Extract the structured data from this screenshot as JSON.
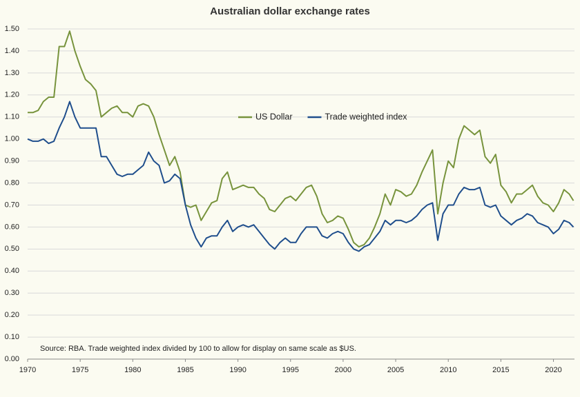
{
  "chart_data": {
    "type": "line",
    "title": "Australian dollar exchange rates",
    "annotation": "Source:  RBA.  Trade weighted index divided by 100 to allow for display on same scale as $US.",
    "x": [
      1970,
      1970.5,
      1971,
      1971.5,
      1972,
      1972.5,
      1973,
      1973.5,
      1974,
      1974.5,
      1975,
      1975.5,
      1976,
      1976.5,
      1977,
      1977.5,
      1978,
      1978.5,
      1979,
      1979.5,
      1980,
      1980.5,
      1981,
      1981.5,
      1982,
      1982.5,
      1983,
      1983.5,
      1984,
      1984.5,
      1985,
      1985.5,
      1986,
      1986.5,
      1987,
      1987.5,
      1988,
      1988.5,
      1989,
      1989.5,
      1990,
      1990.5,
      1991,
      1991.5,
      1992,
      1992.5,
      1993,
      1993.5,
      1994,
      1994.5,
      1995,
      1995.5,
      1996,
      1996.5,
      1997,
      1997.5,
      1998,
      1998.5,
      1999,
      1999.5,
      2000,
      2000.5,
      2001,
      2001.5,
      2002,
      2002.5,
      2003,
      2003.5,
      2004,
      2004.5,
      2005,
      2005.5,
      2006,
      2006.5,
      2007,
      2007.5,
      2008,
      2008.5,
      2009,
      2009.5,
      2010,
      2010.5,
      2011,
      2011.5,
      2012,
      2012.5,
      2013,
      2013.5,
      2014,
      2014.5,
      2015,
      2015.5,
      2016,
      2016.5,
      2017,
      2017.5,
      2018,
      2018.5,
      2019,
      2019.5,
      2020,
      2020.5,
      2021,
      2021.5,
      2021.9
    ],
    "series": [
      {
        "name": "US Dollar",
        "color": "#77933c",
        "values": [
          1.12,
          1.12,
          1.13,
          1.17,
          1.19,
          1.19,
          1.42,
          1.42,
          1.49,
          1.4,
          1.33,
          1.27,
          1.25,
          1.22,
          1.1,
          1.12,
          1.14,
          1.15,
          1.12,
          1.12,
          1.1,
          1.15,
          1.16,
          1.15,
          1.1,
          1.02,
          0.95,
          0.88,
          0.92,
          0.85,
          0.7,
          0.69,
          0.7,
          0.63,
          0.67,
          0.71,
          0.72,
          0.82,
          0.85,
          0.77,
          0.78,
          0.79,
          0.78,
          0.78,
          0.75,
          0.73,
          0.68,
          0.67,
          0.7,
          0.73,
          0.74,
          0.72,
          0.75,
          0.78,
          0.79,
          0.74,
          0.66,
          0.62,
          0.63,
          0.65,
          0.64,
          0.59,
          0.53,
          0.51,
          0.52,
          0.55,
          0.6,
          0.66,
          0.75,
          0.7,
          0.77,
          0.76,
          0.74,
          0.75,
          0.79,
          0.85,
          0.9,
          0.95,
          0.66,
          0.8,
          0.9,
          0.87,
          1.0,
          1.06,
          1.04,
          1.02,
          1.04,
          0.92,
          0.89,
          0.93,
          0.79,
          0.76,
          0.71,
          0.75,
          0.75,
          0.77,
          0.79,
          0.74,
          0.71,
          0.7,
          0.67,
          0.71,
          0.77,
          0.75,
          0.72
        ]
      },
      {
        "name": "Trade weighted index",
        "color": "#1f4e8c",
        "values": [
          1.0,
          0.99,
          0.99,
          1.0,
          0.98,
          0.99,
          1.05,
          1.1,
          1.17,
          1.1,
          1.05,
          1.05,
          1.05,
          1.05,
          0.92,
          0.92,
          0.88,
          0.84,
          0.83,
          0.84,
          0.84,
          0.86,
          0.88,
          0.94,
          0.9,
          0.88,
          0.8,
          0.81,
          0.84,
          0.82,
          0.7,
          0.61,
          0.55,
          0.51,
          0.55,
          0.56,
          0.56,
          0.6,
          0.63,
          0.58,
          0.6,
          0.61,
          0.6,
          0.61,
          0.58,
          0.55,
          0.52,
          0.5,
          0.53,
          0.55,
          0.53,
          0.53,
          0.57,
          0.6,
          0.6,
          0.6,
          0.56,
          0.55,
          0.57,
          0.58,
          0.57,
          0.53,
          0.5,
          0.49,
          0.51,
          0.52,
          0.55,
          0.58,
          0.63,
          0.61,
          0.63,
          0.63,
          0.62,
          0.63,
          0.65,
          0.68,
          0.7,
          0.71,
          0.54,
          0.66,
          0.7,
          0.7,
          0.75,
          0.78,
          0.77,
          0.77,
          0.78,
          0.7,
          0.69,
          0.7,
          0.65,
          0.63,
          0.61,
          0.63,
          0.64,
          0.66,
          0.65,
          0.62,
          0.61,
          0.6,
          0.57,
          0.59,
          0.63,
          0.62,
          0.6
        ]
      }
    ],
    "xlim": [
      1970,
      2022
    ],
    "xticks": [
      1970,
      1975,
      1980,
      1985,
      1990,
      1995,
      2000,
      2005,
      2010,
      2015,
      2020
    ],
    "ylim": [
      0,
      1.5
    ],
    "yticks": [
      {
        "value": 0,
        "label": "0.00"
      },
      {
        "value": 0.1,
        "label": "0.10"
      },
      {
        "value": 0.2,
        "label": "0.20"
      },
      {
        "value": 0.3,
        "label": "0.30"
      },
      {
        "value": 0.4,
        "label": "0.40"
      },
      {
        "value": 0.5,
        "label": "0.50"
      },
      {
        "value": 0.6,
        "label": "0.60"
      },
      {
        "value": 0.7,
        "label": "0.70"
      },
      {
        "value": 0.8,
        "label": "0.80"
      },
      {
        "value": 0.9,
        "label": "0.90"
      },
      {
        "value": 1,
        "label": "1.00"
      },
      {
        "value": 1.1,
        "label": "1.10"
      },
      {
        "value": 1.2,
        "label": "1.20"
      },
      {
        "value": 1.3,
        "label": "1.30"
      },
      {
        "value": 1.4,
        "label": "1.40"
      },
      {
        "value": 1.5,
        "label": "1.50"
      }
    ],
    "grid": true,
    "legend": "center"
  }
}
